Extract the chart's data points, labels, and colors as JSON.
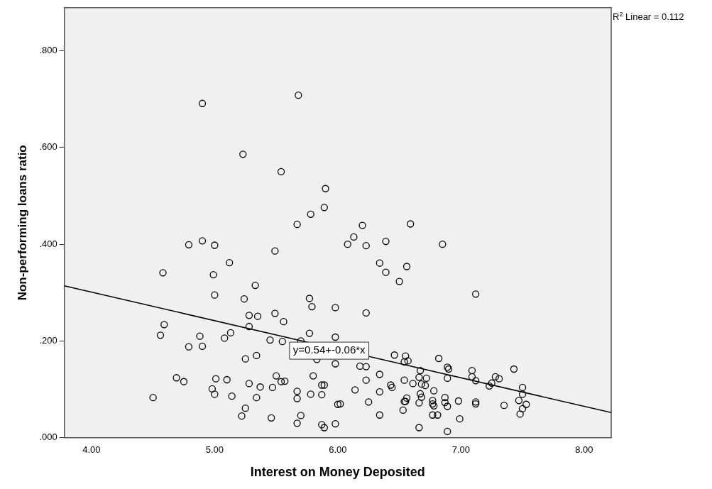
{
  "chart_data": {
    "type": "scatter",
    "xlabel": "Interest on Money Deposited",
    "ylabel": "Non-performing loans ratio",
    "xlim": [
      3.78,
      8.22
    ],
    "ylim": [
      0,
      0.889
    ],
    "xticks": [
      {
        "value": 4,
        "label": "4.00"
      },
      {
        "value": 5,
        "label": "5.00"
      },
      {
        "value": 6,
        "label": "6.00"
      },
      {
        "value": 7,
        "label": "7.00"
      },
      {
        "value": 8,
        "label": "8.00"
      }
    ],
    "yticks": [
      {
        "value": 0,
        "label": ".000"
      },
      {
        "value": 0.2,
        "label": ".200"
      },
      {
        "value": 0.4,
        "label": ".400"
      },
      {
        "value": 0.6,
        "label": ".600"
      },
      {
        "value": 0.8,
        "label": ".800"
      }
    ],
    "grid": false,
    "legend": false,
    "series": [
      {
        "color": "#000000",
        "marker": "circle",
        "x": [
          4.9,
          5.68,
          5.23,
          5.54,
          5.9,
          5.89,
          5.78,
          5.67,
          6.2,
          6.59,
          4.79,
          4.9,
          5.0,
          5.49,
          5.12,
          4.58,
          4.99,
          5.33,
          5.0,
          5.24,
          5.77,
          5.79,
          5.98,
          5.28,
          5.35,
          5.49,
          5.56,
          5.28,
          4.59,
          4.56,
          5.13,
          5.08,
          4.88,
          4.79,
          4.9,
          5.45,
          5.55,
          5.77,
          5.98,
          5.7,
          5.25,
          5.34,
          5.83,
          5.98,
          4.69,
          4.75,
          5.01,
          5.1,
          4.98,
          5.0,
          5.14,
          5.28,
          5.37,
          5.34,
          5.5,
          5.47,
          5.54,
          5.57,
          5.8,
          5.67,
          5.67,
          5.78,
          5.87,
          5.89,
          5.87,
          6.0,
          5.25,
          5.22,
          5.46,
          5.7,
          5.67,
          5.87,
          5.89,
          5.98,
          4.5,
          6.13,
          6.08,
          6.23,
          6.39,
          6.85,
          6.34,
          6.56,
          6.39,
          6.5,
          7.12,
          6.23,
          6.18,
          6.23,
          6.34,
          6.23,
          6.14,
          6.34,
          6.02,
          6.25,
          6.34,
          6.46,
          6.55,
          6.54,
          6.57,
          6.82,
          6.89,
          6.9,
          6.67,
          6.66,
          6.72,
          6.89,
          6.43,
          6.44,
          6.54,
          6.61,
          6.68,
          6.71,
          6.67,
          6.68,
          6.78,
          6.56,
          6.54,
          6.55,
          6.53,
          6.66,
          6.77,
          6.77,
          6.78,
          6.87,
          6.87,
          6.89,
          6.98,
          6.77,
          6.81,
          6.99,
          6.66,
          6.89,
          7.09,
          7.09,
          7.12,
          7.12,
          7.12,
          7.23,
          7.25,
          7.28,
          7.31,
          7.35,
          7.43,
          7.5,
          7.5,
          7.47,
          7.53,
          7.5,
          7.48
        ],
        "values": [
          0.691,
          0.708,
          0.586,
          0.55,
          0.515,
          0.476,
          0.462,
          0.441,
          0.439,
          0.442,
          0.399,
          0.407,
          0.398,
          0.386,
          0.362,
          0.341,
          0.337,
          0.315,
          0.295,
          0.287,
          0.288,
          0.271,
          0.269,
          0.253,
          0.251,
          0.257,
          0.24,
          0.23,
          0.234,
          0.212,
          0.217,
          0.206,
          0.21,
          0.188,
          0.189,
          0.202,
          0.199,
          0.216,
          0.208,
          0.2,
          0.163,
          0.17,
          0.162,
          0.153,
          0.124,
          0.116,
          0.122,
          0.12,
          0.101,
          0.09,
          0.086,
          0.112,
          0.105,
          0.083,
          0.128,
          0.104,
          0.116,
          0.117,
          0.128,
          0.096,
          0.081,
          0.09,
          0.109,
          0.109,
          0.089,
          0.069,
          0.061,
          0.045,
          0.041,
          0.046,
          0.03,
          0.027,
          0.021,
          0.029,
          0.083,
          0.415,
          0.4,
          0.397,
          0.406,
          0.4,
          0.361,
          0.354,
          0.342,
          0.323,
          0.297,
          0.258,
          0.148,
          0.147,
          0.131,
          0.119,
          0.099,
          0.095,
          0.07,
          0.074,
          0.047,
          0.171,
          0.169,
          0.157,
          0.159,
          0.164,
          0.146,
          0.142,
          0.139,
          0.125,
          0.123,
          0.123,
          0.109,
          0.104,
          0.119,
          0.112,
          0.111,
          0.108,
          0.091,
          0.084,
          0.097,
          0.082,
          0.075,
          0.075,
          0.057,
          0.072,
          0.077,
          0.07,
          0.066,
          0.083,
          0.073,
          0.065,
          0.076,
          0.047,
          0.047,
          0.039,
          0.021,
          0.013,
          0.139,
          0.126,
          0.118,
          0.074,
          0.07,
          0.107,
          0.113,
          0.126,
          0.122,
          0.067,
          0.142,
          0.104,
          0.09,
          0.077,
          0.069,
          0.06,
          0.049
        ]
      },
      {
        "type": "line",
        "color": "#000000",
        "marker": "none",
        "x": [
          3.78,
          8.22
        ],
        "values": [
          0.314,
          0.052
        ]
      }
    ],
    "annotations": [
      {
        "text": "y=0.54+-0.06*x",
        "x": 5.93,
        "y": 0.18
      },
      "R$^{2}$ Linear = 0.112"
    ]
  }
}
